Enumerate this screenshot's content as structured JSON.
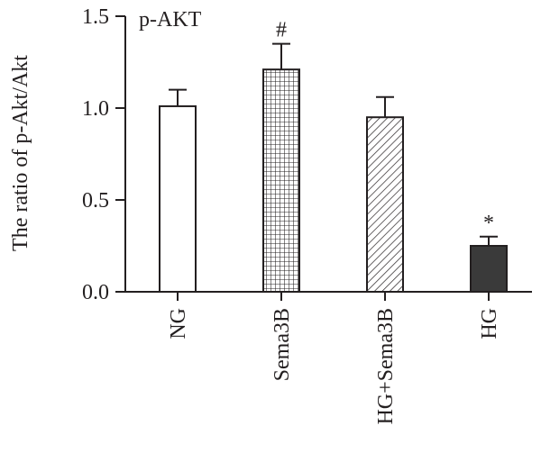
{
  "chart_data": {
    "type": "bar",
    "title": "p-AKT",
    "ylabel": "The ratio of p-Akt/Akt",
    "xlabel": "",
    "ylim": [
      0,
      1.5
    ],
    "yticks": [
      0.0,
      0.5,
      1.0,
      1.5
    ],
    "ytick_labels": [
      "0.0",
      "0.5",
      "1.0",
      "1.5"
    ],
    "grid": false,
    "categories": [
      "NG",
      "Sema3B",
      "HG+Sema3B",
      "HG"
    ],
    "values": [
      1.01,
      1.21,
      0.95,
      0.25
    ],
    "errors": [
      0.09,
      0.14,
      0.11,
      0.05
    ],
    "annotations": [
      "",
      "#",
      "",
      "*"
    ],
    "fills": [
      "white",
      "grid",
      "hatch",
      "solid"
    ],
    "colors": {
      "axis": "#231f20",
      "solid_bar": "#3a3a3a"
    }
  }
}
